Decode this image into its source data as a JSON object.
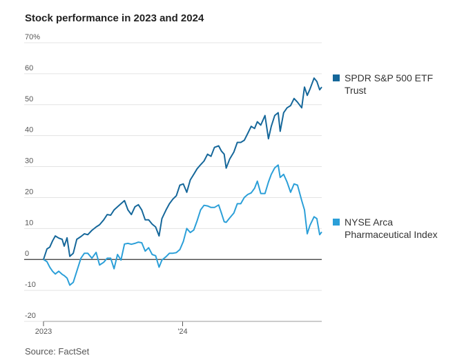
{
  "chart_data": {
    "type": "line",
    "title": "Stock performance in 2023 and 2024",
    "source": "Source: FactSet",
    "x": [
      2023.0,
      2023.025,
      2023.045,
      2023.065,
      2023.085,
      2023.109,
      2023.134,
      2023.149,
      2023.169,
      2023.189,
      2023.214,
      2023.239,
      2023.269,
      2023.294,
      2023.318,
      2023.348,
      2023.378,
      2023.403,
      2023.433,
      2023.458,
      2023.483,
      2023.507,
      2023.532,
      2023.557,
      2023.582,
      2023.607,
      2023.632,
      2023.657,
      2023.682,
      2023.706,
      2023.731,
      2023.756,
      2023.781,
      2023.806,
      2023.831,
      2023.851,
      2023.881,
      2023.905,
      2023.93,
      2023.955,
      2023.98,
      2024.005,
      2024.03,
      2024.055,
      2024.08,
      2024.104,
      2024.129,
      2024.154,
      2024.179,
      2024.204,
      2024.229,
      2024.259,
      2024.279,
      2024.299,
      2024.313,
      2024.338,
      2024.368,
      2024.393,
      2024.418,
      2024.443,
      2024.468,
      2024.493,
      2024.517,
      2024.537,
      2024.562,
      2024.592,
      2024.617,
      2024.637,
      2024.662,
      2024.687,
      2024.701,
      2024.726,
      2024.751,
      2024.776,
      2024.801,
      2024.826,
      2024.856,
      2024.876,
      2024.896,
      2024.915,
      2024.945,
      2024.965,
      2024.985,
      2025.0
    ],
    "series": [
      {
        "name": "SPDR S&P 500 ETF Trust",
        "color": "#15679a",
        "values": [
          0,
          3.4,
          4,
          6,
          7.6,
          6.9,
          6.5,
          4.3,
          7,
          1,
          2,
          6.5,
          7.4,
          8.3,
          8,
          9.4,
          10.5,
          11.2,
          12.8,
          14.5,
          14.3,
          16,
          17,
          18,
          19,
          16,
          14.5,
          17,
          17.7,
          16,
          12.8,
          12.8,
          11.4,
          10.5,
          7.6,
          13.2,
          16,
          18,
          19.5,
          20.6,
          24,
          24.4,
          21.7,
          25.7,
          27.5,
          29.3,
          30.6,
          31.8,
          34,
          33.3,
          36.2,
          36.7,
          35,
          34,
          29.5,
          32.4,
          34.7,
          37.8,
          37.8,
          38.5,
          40.7,
          43,
          42.3,
          44.5,
          43.4,
          46.5,
          39,
          43,
          46.5,
          47.4,
          41.4,
          47.4,
          49,
          49.7,
          52,
          50.8,
          49,
          55.7,
          53,
          55,
          58.6,
          57.5,
          54.8,
          55.7
        ]
      },
      {
        "name": "NYSE Arca Pharmaceutical Index",
        "color": "#2b9fd8",
        "values": [
          0,
          -0.7,
          -2.5,
          -3.8,
          -4.7,
          -3.8,
          -4.8,
          -5.2,
          -6,
          -8.3,
          -7.4,
          -3.8,
          0.4,
          2,
          2,
          0.4,
          2.3,
          -1.8,
          -0.9,
          0.4,
          0.4,
          -3,
          1.6,
          -0.2,
          5,
          5.2,
          4.9,
          5.2,
          5.6,
          5.4,
          2.7,
          3.8,
          1.6,
          1.2,
          -2.5,
          -0.2,
          0.9,
          2,
          2,
          2.2,
          3.2,
          5.8,
          10,
          8.7,
          9.5,
          12.5,
          16,
          17.5,
          17.3,
          16.8,
          16.8,
          17.6,
          15,
          12.2,
          12,
          13.4,
          15,
          18,
          18,
          20,
          21,
          21.5,
          23,
          25.3,
          21.3,
          21.3,
          25,
          27.5,
          29.6,
          30.5,
          26.5,
          27.5,
          25,
          21.7,
          24.4,
          24,
          19,
          16,
          8.3,
          11,
          13.8,
          13.2,
          8,
          8.9
        ]
      }
    ],
    "xlim": [
      2023,
      2025
    ],
    "xticks": [
      2023,
      {
        "value": 2024,
        "label": "'24"
      }
    ],
    "ylim": [
      -20,
      70
    ],
    "yticks": [
      -20,
      -10,
      0,
      10,
      20,
      30,
      40,
      50,
      60,
      {
        "value": 70,
        "label": "70%"
      }
    ],
    "grid": true
  }
}
